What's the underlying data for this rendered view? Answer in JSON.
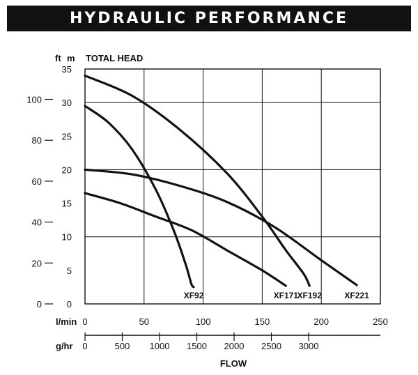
{
  "header": {
    "title": "HYDRAULIC PERFORMANCE"
  },
  "chart_data": {
    "type": "line",
    "title": "HYDRAULIC PERFORMANCE",
    "ylabel": "TOTAL HEAD",
    "xlabel": "FLOW",
    "y_unit_m": "m",
    "y_unit_ft": "ft",
    "x_unit_lmin": "l/min",
    "x_unit_ghr": "g/hr",
    "xlim": [
      0,
      250
    ],
    "ylim": [
      0,
      35
    ],
    "grid": true,
    "x_ticks_lmin": [
      0,
      50,
      100,
      150,
      200,
      250
    ],
    "y_ticks_m": [
      0,
      5,
      10,
      15,
      20,
      25,
      30,
      35
    ],
    "y_ticks_ft": [
      0,
      20,
      40,
      60,
      80,
      100
    ],
    "x_ticks_ghr": [
      0,
      500,
      1000,
      1500,
      2000,
      2500,
      3000
    ],
    "series": [
      {
        "name": "XF92",
        "x": [
          0,
          20,
          40,
          60,
          75,
          85,
          90,
          92
        ],
        "y": [
          29.5,
          27,
          23,
          17,
          11,
          6,
          3,
          2.5
        ]
      },
      {
        "name": "XF171",
        "x": [
          0,
          30,
          60,
          90,
          120,
          150,
          170
        ],
        "y": [
          16.5,
          15,
          13,
          11,
          8,
          5,
          2.7
        ]
      },
      {
        "name": "XF192",
        "x": [
          0,
          40,
          80,
          120,
          150,
          170,
          185,
          190
        ],
        "y": [
          34,
          31,
          26,
          19.5,
          13,
          8,
          4.5,
          2.7
        ]
      },
      {
        "name": "XF221",
        "x": [
          0,
          40,
          80,
          120,
          160,
          200,
          230
        ],
        "y": [
          20,
          19.3,
          17.6,
          15.2,
          11.5,
          6.5,
          2.8
        ]
      }
    ],
    "series_labels": [
      "XF92",
      "XF171",
      "XF192",
      "XF221"
    ]
  }
}
